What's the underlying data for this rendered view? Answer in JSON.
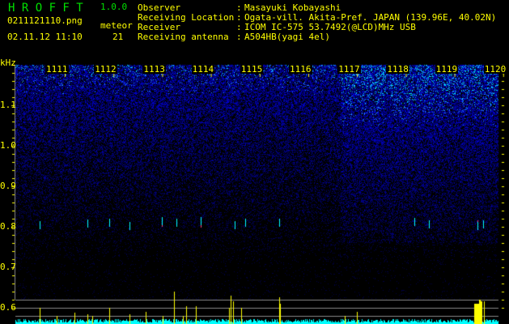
{
  "app": {
    "title": "H R O F F T",
    "version": "1.0.0"
  },
  "file": {
    "name": "0211121110.png",
    "datetime": "02.11.12 11:10"
  },
  "meteor": {
    "label": "meteor",
    "count": "21"
  },
  "info": [
    {
      "label": "Observer",
      "value": "Masayuki Kobayashi"
    },
    {
      "label": "Receiving Location",
      "value": "Ogata-vill. Akita-Pref. JAPAN (139.96E, 40.02N)"
    },
    {
      "label": "Receiver",
      "value": "ICOM IC-575 53.7492(@LCD)MHz USB"
    },
    {
      "label": "Receiving antenna",
      "value": "A504HB(yagi 4el)"
    }
  ],
  "spectrogram": {
    "y_unit": "kHz",
    "y_ticks": [
      "1.1",
      "1.0",
      "0.9",
      "0.8",
      "0.7",
      "0.6"
    ],
    "time_labels": [
      "1111",
      "1112",
      "1113",
      "1114",
      "1115",
      "1116",
      "1117",
      "1118",
      "1119",
      "1120"
    ],
    "colors": {
      "text": "#ffff00",
      "header": "#00e000",
      "noise": "#0000ff",
      "histogram": "#00ffff",
      "meteor_bar": "#ffff00"
    }
  }
}
